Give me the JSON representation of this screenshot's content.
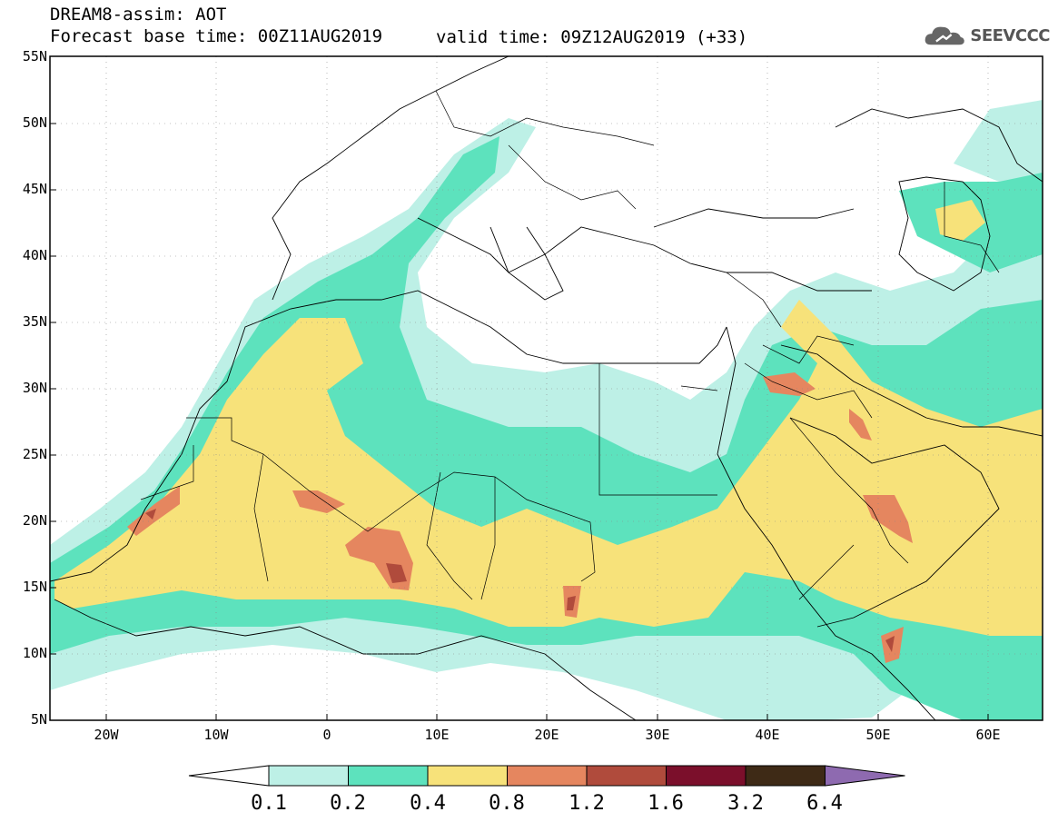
{
  "header": {
    "title_line1": "DREAM8-assim: AOT",
    "title_line2": "Forecast base time: 00Z11AUG2019",
    "title_line2b": "valid time: 09Z12AUG2019 (+33)",
    "logo_text": "SEEVCCC"
  },
  "map": {
    "lat_ticks": [
      "55N",
      "50N",
      "45N",
      "40N",
      "35N",
      "30N",
      "25N",
      "20N",
      "15N",
      "10N",
      "5N"
    ],
    "lon_ticks": [
      "20W",
      "10W",
      "0",
      "10E",
      "20E",
      "30E",
      "40E",
      "50E",
      "60E"
    ],
    "lon_range": [
      -25,
      65
    ],
    "lat_range": [
      5,
      55
    ]
  },
  "legend": {
    "labels": [
      "0.1",
      "0.2",
      "0.4",
      "0.8",
      "1.2",
      "1.6",
      "3.2",
      "6.4"
    ],
    "colors": [
      "#ffffff",
      "#bdf0e6",
      "#5de2bd",
      "#f7e27a",
      "#e5865f",
      "#b04b3c",
      "#7b0f2b",
      "#3e2a16",
      "#8e6ab0"
    ]
  }
}
